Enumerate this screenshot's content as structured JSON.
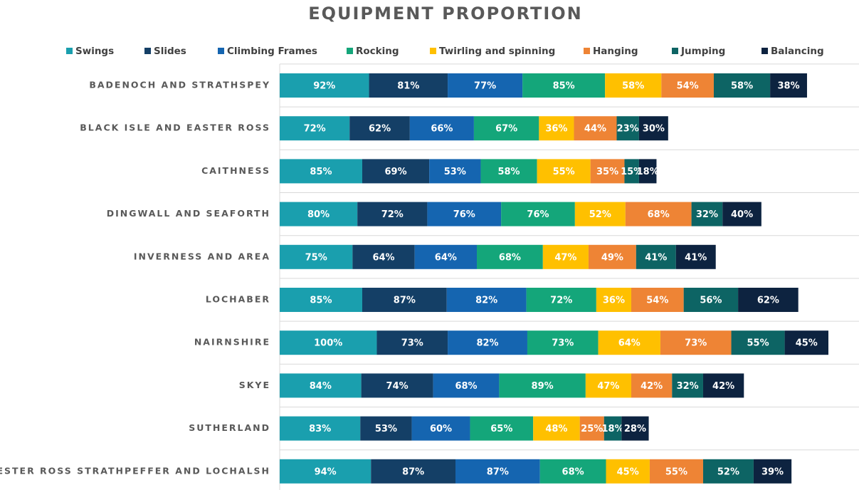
{
  "chart_data": {
    "type": "stacked_bar_horizontal",
    "title": "EQUIPMENT PROPORTION",
    "categories": [
      "BADENOCH AND STRATHSPEY",
      "BLACK ISLE AND EASTER ROSS",
      "CAITHNESS",
      "DINGWALL AND SEAFORTH",
      "INVERNESS AND AREA",
      "LOCHABER",
      "NAIRNSHIRE",
      "SKYE",
      "SUTHERLAND",
      "WESTER ROSS STRATHPEFFER AND LOCHALSH"
    ],
    "legend": "top",
    "grid": true,
    "series": [
      {
        "name": "Swings",
        "color": "#1a9fae",
        "values": [
          92,
          72,
          85,
          80,
          75,
          85,
          100,
          84,
          83,
          94
        ],
        "value_labels": [
          "92%",
          "72%",
          "85%",
          "80%",
          "75%",
          "85%",
          "100%",
          "84%",
          "83%",
          "94%"
        ]
      },
      {
        "name": "Slides",
        "color": "#143f66",
        "values": [
          81,
          62,
          69,
          72,
          64,
          87,
          73,
          74,
          53,
          87
        ],
        "value_labels": [
          "81%",
          "62%",
          "69%",
          "72%",
          "64%",
          "87%",
          "73%",
          "74%",
          "53%",
          "87%"
        ]
      },
      {
        "name": "Climbing Frames",
        "color": "#1565b0",
        "values": [
          77,
          66,
          53,
          76,
          64,
          82,
          82,
          68,
          60,
          87
        ],
        "value_labels": [
          "77%",
          "66%",
          "53%",
          "76%",
          "64%",
          "82%",
          "82%",
          "68%",
          "60%",
          "87%"
        ]
      },
      {
        "name": "Rocking",
        "color": "#14a67a",
        "values": [
          85,
          67,
          58,
          76,
          68,
          72,
          73,
          89,
          65,
          68
        ],
        "value_labels": [
          "85%",
          "67%",
          "58%",
          "76%",
          "68%",
          "72%",
          "73%",
          "89%",
          "65%",
          "68%"
        ]
      },
      {
        "name": "Twirling and spinning",
        "color": "#ffc000",
        "values": [
          58,
          36,
          55,
          52,
          47,
          36,
          64,
          47,
          48,
          45
        ],
        "value_labels": [
          "58%",
          "36%",
          "55%",
          "52%",
          "47%",
          "36%",
          "64%",
          "47%",
          "48%",
          "45%"
        ]
      },
      {
        "name": "Hanging",
        "color": "#ee8435",
        "values": [
          54,
          44,
          35,
          68,
          49,
          54,
          73,
          42,
          25,
          55
        ],
        "value_labels": [
          "54%",
          "44%",
          "35%",
          "68%",
          "49%",
          "54%",
          "73%",
          "42%",
          "25%",
          "55%"
        ]
      },
      {
        "name": "Jumping",
        "color": "#0d6464",
        "values": [
          58,
          23,
          15,
          32,
          41,
          56,
          55,
          32,
          18,
          52
        ],
        "value_labels": [
          "58%",
          "23%",
          "15%",
          "32%",
          "41%",
          "56%",
          "55%",
          "32%",
          "18%",
          "52%"
        ]
      },
      {
        "name": "Balancing",
        "color": "#0d2340",
        "values": [
          38,
          30,
          18,
          40,
          41,
          62,
          45,
          42,
          28,
          39
        ],
        "value_labels": [
          "38%",
          "30%",
          "18%",
          "40%",
          "41%",
          "62%",
          "45%",
          "42%",
          "28%",
          "39%"
        ]
      }
    ]
  }
}
